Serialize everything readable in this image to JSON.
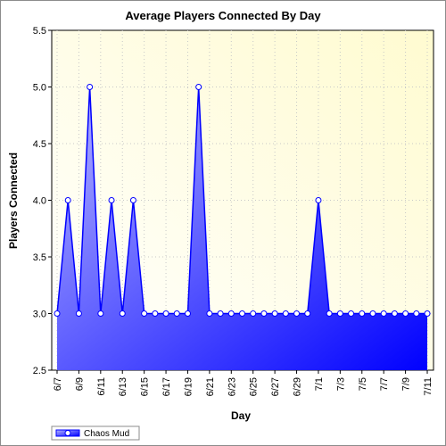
{
  "chart_data": {
    "type": "area",
    "title": "Average Players Connected By Day",
    "xlabel": "Day",
    "ylabel": "Players Connected",
    "ylim": [
      2.5,
      5.5
    ],
    "yticks": [
      "2.5",
      "3.0",
      "3.5",
      "4.0",
      "4.5",
      "5.0",
      "5.5"
    ],
    "x_tick_labels": [
      "6/7",
      "6/9",
      "6/11",
      "6/13",
      "6/15",
      "6/17",
      "6/19",
      "6/21",
      "6/23",
      "6/25",
      "6/27",
      "6/29",
      "7/1",
      "7/3",
      "7/5",
      "7/7",
      "7/9",
      "7/11"
    ],
    "grid": true,
    "legend_position": "bottom-left",
    "series": [
      {
        "name": "Chaos Mud",
        "x": [
          "6/7",
          "6/8",
          "6/9",
          "6/10",
          "6/11",
          "6/12",
          "6/13",
          "6/14",
          "6/15",
          "6/16",
          "6/17",
          "6/18",
          "6/19",
          "6/20",
          "6/21",
          "6/22",
          "6/23",
          "6/24",
          "6/25",
          "6/26",
          "6/27",
          "6/28",
          "6/29",
          "6/30",
          "7/1",
          "7/2",
          "7/3",
          "7/4",
          "7/5",
          "7/6",
          "7/7",
          "7/8",
          "7/9",
          "7/10",
          "7/11"
        ],
        "values": [
          3,
          4,
          3,
          5,
          3,
          4,
          3,
          4,
          3,
          3,
          3,
          3,
          3,
          5,
          3,
          3,
          3,
          3,
          3,
          3,
          3,
          3,
          3,
          3,
          4,
          3,
          3,
          3,
          3,
          3,
          3,
          3,
          3,
          3,
          3
        ]
      }
    ],
    "colors": {
      "line": "#0000ff",
      "fill_start": "#b4b4ff",
      "fill_end": "#0000ff",
      "plot_bg_start": "#ffffff",
      "plot_bg_end": "#fffbd0"
    }
  }
}
